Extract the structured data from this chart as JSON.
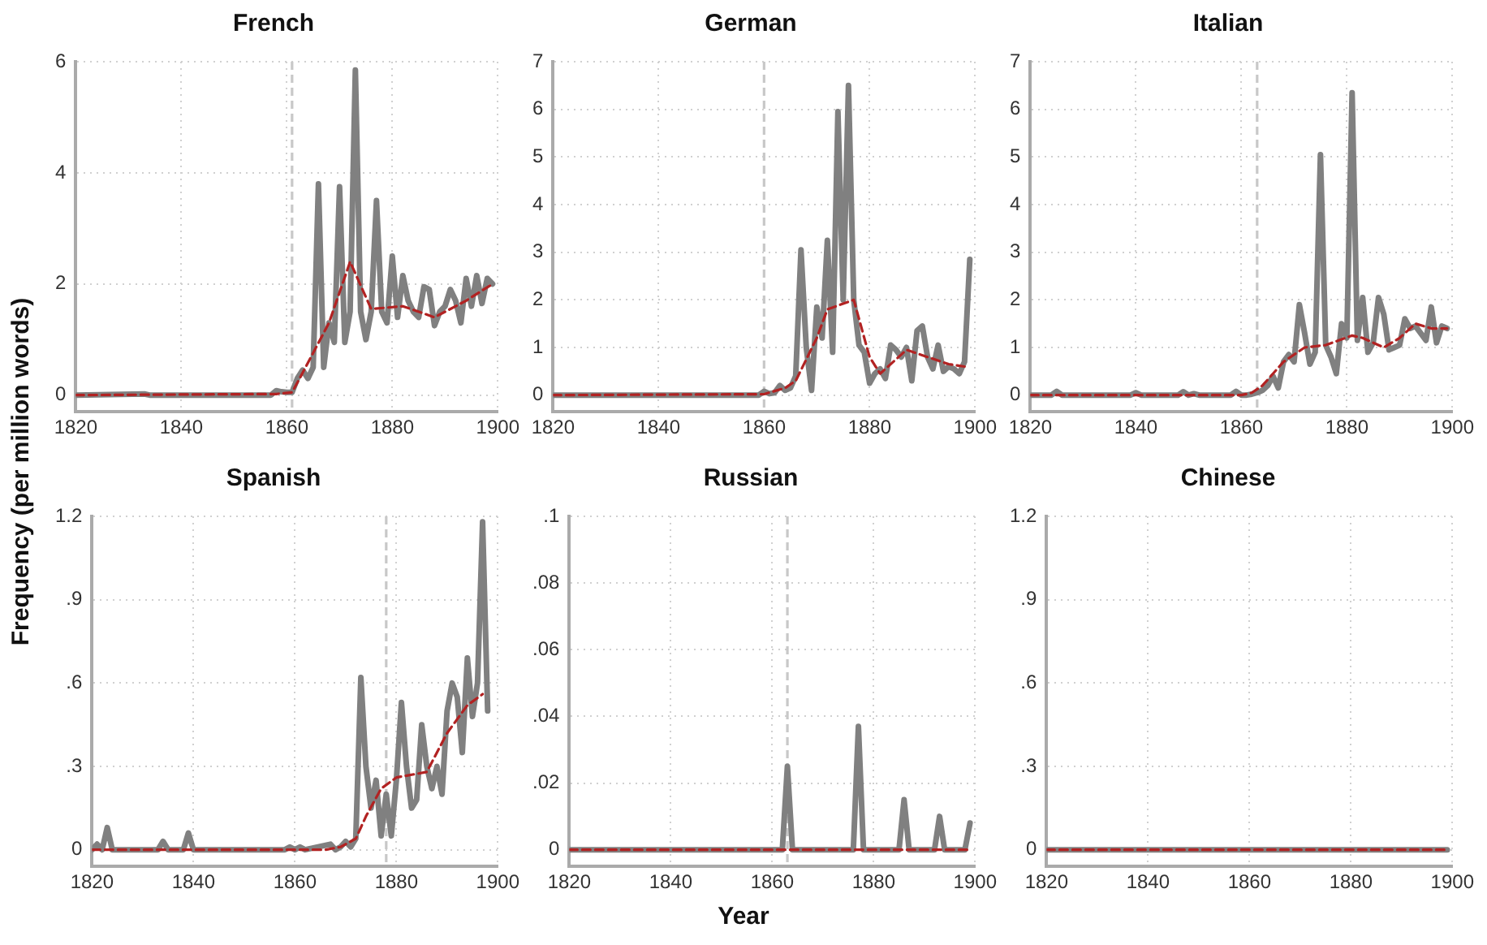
{
  "chart_data": [
    {
      "type": "line",
      "title": "French",
      "xlim": [
        1820,
        1900
      ],
      "xticks": [
        1820,
        1840,
        1860,
        1880,
        1900
      ],
      "ylim": [
        -0.3,
        6
      ],
      "yticks": [
        0,
        2,
        4,
        6
      ],
      "grid": true,
      "ref_lines": [
        {
          "axis": "x",
          "value": 1861,
          "color": "#c8c8c8",
          "line_style": "dashed"
        }
      ],
      "series": [
        {
          "type": "line",
          "color": "#808080",
          "x": [
            1820,
            1833,
            1834,
            1857,
            1858,
            1859,
            1860,
            1861,
            1862,
            1863,
            1864,
            1865,
            1866,
            1867,
            1868,
            1869,
            1870,
            1871,
            1872,
            1873,
            1874,
            1875,
            1876,
            1877,
            1878,
            1879,
            1880,
            1881,
            1882,
            1883,
            1884,
            1885,
            1886,
            1887,
            1888,
            1889,
            1890,
            1891,
            1892,
            1893,
            1894,
            1895,
            1896,
            1897,
            1898,
            1899
          ],
          "values": [
            0,
            0.02,
            0,
            0,
            0.08,
            0.06,
            0.05,
            0.05,
            0.3,
            0.45,
            0.3,
            0.5,
            3.8,
            0.5,
            1.3,
            0.95,
            3.75,
            0.95,
            1.5,
            5.85,
            1.5,
            1.0,
            1.5,
            3.5,
            1.5,
            1.3,
            2.5,
            1.4,
            2.15,
            1.7,
            1.5,
            1.4,
            1.95,
            1.9,
            1.25,
            1.5,
            1.6,
            1.9,
            1.7,
            1.3,
            2.1,
            1.6,
            2.15,
            1.65,
            2.1,
            2.0
          ]
        },
        {
          "type": "line",
          "color": "#b22222",
          "line_style": "dashed",
          "x": [
            1820,
            1858,
            1861,
            1863,
            1868,
            1872,
            1876,
            1882,
            1888,
            1894,
            1899
          ],
          "values": [
            0,
            0.02,
            0.05,
            0.4,
            1.3,
            2.4,
            1.55,
            1.6,
            1.4,
            1.7,
            2.0
          ]
        }
      ]
    },
    {
      "type": "line",
      "title": "German",
      "xlim": [
        1820,
        1900
      ],
      "xticks": [
        1820,
        1840,
        1860,
        1880,
        1900
      ],
      "ylim": [
        -0.35,
        7
      ],
      "yticks": [
        0,
        1,
        2,
        3,
        4,
        5,
        6,
        7
      ],
      "grid": true,
      "ref_lines": [
        {
          "axis": "x",
          "value": 1860,
          "color": "#c8c8c8",
          "line_style": "dashed"
        }
      ],
      "series": [
        {
          "type": "line",
          "color": "#808080",
          "x": [
            1820,
            1859,
            1860,
            1861,
            1862,
            1863,
            1864,
            1865,
            1866,
            1867,
            1868,
            1869,
            1870,
            1871,
            1872,
            1873,
            1874,
            1875,
            1876,
            1877,
            1878,
            1879,
            1880,
            1881,
            1882,
            1883,
            1884,
            1885,
            1886,
            1887,
            1888,
            1889,
            1890,
            1891,
            1892,
            1893,
            1894,
            1895,
            1896,
            1897,
            1898,
            1899
          ],
          "values": [
            0,
            0,
            0.08,
            0.03,
            0.05,
            0.2,
            0.1,
            0.15,
            0.4,
            3.05,
            1.0,
            0.1,
            1.85,
            1.2,
            3.25,
            0.9,
            5.95,
            2.0,
            6.5,
            2.0,
            1.05,
            0.9,
            0.25,
            0.45,
            0.55,
            0.35,
            1.05,
            0.95,
            0.8,
            1.0,
            0.3,
            1.35,
            1.45,
            0.8,
            0.55,
            1.05,
            0.5,
            0.6,
            0.55,
            0.45,
            0.7,
            2.85
          ]
        },
        {
          "type": "line",
          "color": "#b22222",
          "line_style": "dashed",
          "x": [
            1820,
            1860,
            1864,
            1866,
            1870,
            1872,
            1877,
            1880,
            1882,
            1887,
            1891,
            1895,
            1898
          ],
          "values": [
            0,
            0.02,
            0.15,
            0.3,
            1.2,
            1.8,
            2.0,
            0.8,
            0.45,
            0.95,
            0.8,
            0.65,
            0.6
          ]
        }
      ]
    },
    {
      "type": "line",
      "title": "Italian",
      "xlim": [
        1820,
        1900
      ],
      "xticks": [
        1820,
        1840,
        1860,
        1880,
        1900
      ],
      "ylim": [
        -0.35,
        7
      ],
      "yticks": [
        0,
        1,
        2,
        3,
        4,
        5,
        6,
        7
      ],
      "grid": true,
      "ref_lines": [
        {
          "axis": "x",
          "value": 1863,
          "color": "#c8c8c8",
          "line_style": "dashed"
        }
      ],
      "series": [
        {
          "type": "line",
          "color": "#808080",
          "x": [
            1820,
            1824,
            1825,
            1826,
            1839,
            1840,
            1841,
            1848,
            1849,
            1850,
            1851,
            1852,
            1858,
            1859,
            1860,
            1861,
            1862,
            1863,
            1864,
            1865,
            1866,
            1867,
            1868,
            1869,
            1870,
            1871,
            1872,
            1873,
            1874,
            1875,
            1876,
            1877,
            1878,
            1879,
            1880,
            1881,
            1882,
            1883,
            1884,
            1885,
            1886,
            1887,
            1888,
            1889,
            1890,
            1891,
            1892,
            1893,
            1894,
            1895,
            1896,
            1897,
            1898,
            1899
          ],
          "values": [
            0,
            0,
            0.08,
            0,
            0,
            0.05,
            0,
            0,
            0.07,
            0,
            0.03,
            0,
            0,
            0.08,
            0,
            0,
            0.02,
            0.05,
            0.1,
            0.2,
            0.4,
            0.15,
            0.7,
            0.85,
            0.7,
            1.9,
            1.3,
            0.65,
            0.9,
            5.05,
            1.05,
            0.8,
            0.45,
            1.5,
            1.2,
            6.35,
            1.15,
            2.05,
            0.9,
            1.1,
            2.05,
            1.7,
            0.95,
            1.0,
            1.05,
            1.6,
            1.4,
            1.45,
            1.3,
            1.15,
            1.85,
            1.1,
            1.45,
            1.4
          ]
        },
        {
          "type": "line",
          "color": "#b22222",
          "line_style": "dashed",
          "x": [
            1820,
            1860,
            1862,
            1864,
            1868,
            1872,
            1876,
            1881,
            1883,
            1887,
            1890,
            1893,
            1896,
            1899
          ],
          "values": [
            0,
            0,
            0.05,
            0.2,
            0.7,
            1.0,
            1.05,
            1.25,
            1.2,
            1.0,
            1.2,
            1.5,
            1.4,
            1.4
          ]
        }
      ]
    },
    {
      "type": "line",
      "title": "Spanish",
      "ylabel": "Frequency (per million words)",
      "xlim": [
        1820,
        1900
      ],
      "xticks": [
        1820,
        1840,
        1860,
        1880,
        1900
      ],
      "ylim": [
        -0.06,
        1.2
      ],
      "yticks": [
        0,
        {
          "value": 0.3,
          "label": ".3"
        },
        {
          "value": 0.6,
          "label": ".6"
        },
        {
          "value": 0.9,
          "label": ".9"
        },
        1.2
      ],
      "grid": true,
      "ref_lines": [
        {
          "axis": "x",
          "value": 1878,
          "color": "#c8c8c8",
          "line_style": "dashed"
        }
      ],
      "series": [
        {
          "type": "line",
          "color": "#808080",
          "x": [
            1820,
            1821,
            1822,
            1823,
            1824,
            1833,
            1834,
            1835,
            1838,
            1839,
            1840,
            1858,
            1859,
            1860,
            1861,
            1862,
            1867,
            1868,
            1869,
            1870,
            1871,
            1872,
            1873,
            1874,
            1875,
            1876,
            1877,
            1878,
            1879,
            1880,
            1881,
            1882,
            1883,
            1884,
            1885,
            1886,
            1887,
            1888,
            1889,
            1890,
            1891,
            1892,
            1893,
            1894,
            1895,
            1896,
            1897,
            1898
          ],
          "values": [
            0,
            0.02,
            0,
            0.08,
            0,
            0,
            0.03,
            0,
            0,
            0.06,
            0,
            0,
            0.01,
            0,
            0.01,
            0,
            0.02,
            0,
            0.01,
            0.03,
            0.01,
            0.04,
            0.62,
            0.3,
            0.15,
            0.25,
            0.05,
            0.2,
            0.05,
            0.25,
            0.53,
            0.3,
            0.15,
            0.18,
            0.45,
            0.3,
            0.22,
            0.3,
            0.2,
            0.5,
            0.6,
            0.55,
            0.35,
            0.69,
            0.48,
            0.6,
            1.18,
            0.5
          ]
        },
        {
          "type": "line",
          "color": "#b22222",
          "line_style": "dashed",
          "x": [
            1820,
            1866,
            1869,
            1872,
            1874,
            1877,
            1880,
            1886,
            1890,
            1894,
            1897
          ],
          "values": [
            0,
            0,
            0.01,
            0.04,
            0.12,
            0.22,
            0.26,
            0.28,
            0.42,
            0.52,
            0.56
          ]
        }
      ]
    },
    {
      "type": "line",
      "title": "Russian",
      "xlabel": "Year",
      "xlim": [
        1820,
        1900
      ],
      "xticks": [
        1820,
        1840,
        1860,
        1880,
        1900
      ],
      "ylim": [
        -0.005,
        0.1
      ],
      "yticks": [
        0,
        {
          "value": 0.02,
          "label": ".02"
        },
        {
          "value": 0.04,
          "label": ".04"
        },
        {
          "value": 0.06,
          "label": ".06"
        },
        {
          "value": 0.08,
          "label": ".08"
        },
        {
          "value": 0.1,
          "label": ".1"
        }
      ],
      "grid": true,
      "ref_lines": [
        {
          "axis": "x",
          "value": 1863,
          "color": "#c8c8c8",
          "line_style": "dashed"
        }
      ],
      "series": [
        {
          "type": "line",
          "color": "#808080",
          "x": [
            1820,
            1862,
            1863,
            1864,
            1876,
            1877,
            1878,
            1885,
            1886,
            1887,
            1892,
            1893,
            1894,
            1898,
            1899
          ],
          "values": [
            0,
            0,
            0.025,
            0,
            0,
            0.037,
            0,
            0,
            0.015,
            0,
            0,
            0.01,
            0,
            0,
            0.008
          ]
        },
        {
          "type": "line",
          "color": "#b22222",
          "line_style": "dashed",
          "x": [
            1820,
            1899
          ],
          "values": [
            0,
            0
          ]
        }
      ]
    },
    {
      "type": "line",
      "title": "Chinese",
      "xlim": [
        1820,
        1900
      ],
      "xticks": [
        1820,
        1840,
        1860,
        1880,
        1900
      ],
      "ylim": [
        -0.06,
        1.2
      ],
      "yticks": [
        0,
        {
          "value": 0.3,
          "label": ".3"
        },
        {
          "value": 0.6,
          "label": ".6"
        },
        {
          "value": 0.9,
          "label": ".9"
        },
        1.2
      ],
      "grid": true,
      "series": [
        {
          "type": "line",
          "color": "#808080",
          "x": [
            1820,
            1899
          ],
          "values": [
            0,
            0
          ]
        },
        {
          "type": "line",
          "color": "#b22222",
          "line_style": "dashed",
          "x": [
            1820,
            1899
          ],
          "values": [
            0,
            0
          ]
        }
      ]
    }
  ]
}
